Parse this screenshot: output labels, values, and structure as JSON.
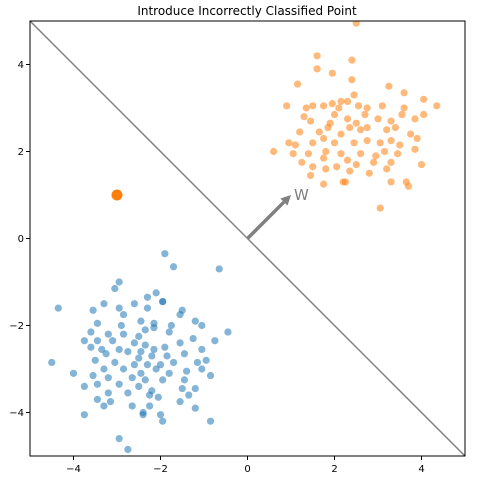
{
  "chart_data": {
    "type": "scatter",
    "title": "Introduce Incorrectly Classified Point",
    "xlim": [
      -5,
      5
    ],
    "ylim": [
      -5,
      5
    ],
    "xticks": [
      -4,
      -2,
      0,
      2,
      4
    ],
    "yticks": [
      -4,
      -2,
      0,
      2,
      4
    ],
    "xtick_labels": [
      "−4",
      "−2",
      "0",
      "2",
      "4"
    ],
    "ytick_labels": [
      "−4",
      "−2",
      "0",
      "2",
      "4"
    ],
    "grid": false,
    "legend": "none",
    "colors": {
      "blue": "#1f77b4",
      "orange": "#ff7f0e",
      "line": "#808080"
    },
    "decision_line": {
      "points": [
        [
          -5,
          5
        ],
        [
          5,
          -5
        ]
      ]
    },
    "weight_vector": {
      "start": [
        0,
        0
      ],
      "end": [
        1,
        1
      ],
      "label": "W"
    },
    "misclassified_point": {
      "x": -3,
      "y": 1
    },
    "series": [
      {
        "color": "#1f77b4",
        "points": [
          [
            -1.9,
            -0.35
          ],
          [
            -1.7,
            -0.65
          ],
          [
            -0.65,
            -0.7
          ],
          [
            -2.95,
            -1.0
          ],
          [
            -3.05,
            -1.15
          ],
          [
            -2.1,
            -1.25
          ],
          [
            -2.3,
            -1.35
          ],
          [
            -4.35,
            -1.6
          ],
          [
            -3.3,
            -1.5
          ],
          [
            -2.6,
            -1.5
          ],
          [
            -1.95,
            -1.45
          ],
          [
            -3.55,
            -1.65
          ],
          [
            -2.95,
            -1.6
          ],
          [
            -2.3,
            -1.6
          ],
          [
            -1.5,
            -1.65
          ],
          [
            -2.85,
            -1.75
          ],
          [
            -1.2,
            -1.9
          ],
          [
            -2.45,
            -1.9
          ],
          [
            -2.15,
            -1.95
          ],
          [
            -3.45,
            -1.95
          ],
          [
            -2.9,
            -2.0
          ],
          [
            -1.75,
            -2.0
          ],
          [
            -1.55,
            -1.75
          ],
          [
            -1.05,
            -2.0
          ],
          [
            -2.15,
            -2.05
          ],
          [
            -3.6,
            -2.15
          ],
          [
            -3.2,
            -2.2
          ],
          [
            -2.85,
            -2.2
          ],
          [
            -2.5,
            -2.25
          ],
          [
            -1.8,
            -2.15
          ],
          [
            -0.45,
            -2.15
          ],
          [
            -3.75,
            -2.35
          ],
          [
            -3.45,
            -2.35
          ],
          [
            -3.1,
            -2.35
          ],
          [
            -2.6,
            -2.4
          ],
          [
            -2.35,
            -2.45
          ],
          [
            -1.55,
            -2.4
          ],
          [
            -0.75,
            -2.35
          ],
          [
            -3.6,
            -2.5
          ],
          [
            -3.35,
            -2.55
          ],
          [
            -2.95,
            -2.55
          ],
          [
            -2.45,
            -2.6
          ],
          [
            -2.15,
            -2.55
          ],
          [
            -1.9,
            -2.5
          ],
          [
            -1.05,
            -2.55
          ],
          [
            -3.25,
            -2.65
          ],
          [
            -2.75,
            -2.6
          ],
          [
            -2.5,
            -2.75
          ],
          [
            -2.2,
            -2.7
          ],
          [
            -1.85,
            -2.7
          ],
          [
            -1.45,
            -2.65
          ],
          [
            -4.5,
            -2.85
          ],
          [
            -3.5,
            -2.8
          ],
          [
            -3.05,
            -2.85
          ],
          [
            -2.6,
            -2.9
          ],
          [
            -2.3,
            -2.9
          ],
          [
            -2.0,
            -2.9
          ],
          [
            -1.7,
            -2.85
          ],
          [
            -1.15,
            -2.85
          ],
          [
            -0.95,
            -2.8
          ],
          [
            -3.3,
            -3.0
          ],
          [
            -2.85,
            -3.0
          ],
          [
            -2.45,
            -3.1
          ],
          [
            -2.1,
            -3.0
          ],
          [
            -1.8,
            -3.1
          ],
          [
            -1.4,
            -3.05
          ],
          [
            -1.05,
            -3.0
          ],
          [
            -4.0,
            -3.1
          ],
          [
            -3.55,
            -3.15
          ],
          [
            -3.2,
            -3.2
          ],
          [
            -2.65,
            -3.2
          ],
          [
            -2.35,
            -3.25
          ],
          [
            -1.95,
            -3.25
          ],
          [
            -1.45,
            -3.25
          ],
          [
            -0.85,
            -3.15
          ],
          [
            -3.75,
            -3.4
          ],
          [
            -3.45,
            -3.35
          ],
          [
            -2.95,
            -3.35
          ],
          [
            -2.5,
            -3.4
          ],
          [
            -2.2,
            -3.5
          ],
          [
            -1.5,
            -3.45
          ],
          [
            -1.2,
            -3.45
          ],
          [
            -3.2,
            -3.55
          ],
          [
            -2.75,
            -3.55
          ],
          [
            -3.45,
            -3.7
          ],
          [
            -2.25,
            -3.6
          ],
          [
            -1.35,
            -3.6
          ],
          [
            -1.55,
            -3.75
          ],
          [
            -2.05,
            -3.65
          ],
          [
            -2.25,
            -3.85
          ],
          [
            -3.3,
            -3.85
          ],
          [
            -2.4,
            -4.0
          ],
          [
            -3.75,
            -4.05
          ],
          [
            -1.2,
            -3.9
          ],
          [
            -2.0,
            -4.05
          ],
          [
            -2.4,
            -4.05
          ],
          [
            -3.15,
            -3.75
          ],
          [
            -0.85,
            -4.2
          ],
          [
            -1.95,
            -4.2
          ],
          [
            -2.95,
            -4.6
          ],
          [
            -2.75,
            -4.85
          ],
          [
            -1.95,
            -1.45
          ],
          [
            -2.35,
            -2.1
          ],
          [
            -2.65,
            -3.85
          ],
          [
            -1.25,
            -2.3
          ]
        ]
      },
      {
        "color": "#ff7f0e",
        "points": [
          [
            2.5,
            4.95
          ],
          [
            1.6,
            4.2
          ],
          [
            2.4,
            4.1
          ],
          [
            1.6,
            3.9
          ],
          [
            1.95,
            3.8
          ],
          [
            2.4,
            3.65
          ],
          [
            1.15,
            3.55
          ],
          [
            3.25,
            3.5
          ],
          [
            2.45,
            3.3
          ],
          [
            3.6,
            3.35
          ],
          [
            4.05,
            3.2
          ],
          [
            4.35,
            3.05
          ],
          [
            0.9,
            3.05
          ],
          [
            1.75,
            3.05
          ],
          [
            1.95,
            3.1
          ],
          [
            2.1,
            3.0
          ],
          [
            2.15,
            3.15
          ],
          [
            2.3,
            3.15
          ],
          [
            2.55,
            3.05
          ],
          [
            2.75,
            3.0
          ],
          [
            3.1,
            3.05
          ],
          [
            3.6,
            3.0
          ],
          [
            4.05,
            2.85
          ],
          [
            1.35,
            3.0
          ],
          [
            1.5,
            3.05
          ],
          [
            1.3,
            2.8
          ],
          [
            1.45,
            2.7
          ],
          [
            2.0,
            2.85
          ],
          [
            2.3,
            2.75
          ],
          [
            2.5,
            2.65
          ],
          [
            2.75,
            2.55
          ],
          [
            3.0,
            2.75
          ],
          [
            3.3,
            2.7
          ],
          [
            3.55,
            2.85
          ],
          [
            3.85,
            2.75
          ],
          [
            1.85,
            2.55
          ],
          [
            2.15,
            2.4
          ],
          [
            2.35,
            2.55
          ],
          [
            2.6,
            2.5
          ],
          [
            3.2,
            2.5
          ],
          [
            3.4,
            2.55
          ],
          [
            3.75,
            2.4
          ],
          [
            1.2,
            2.45
          ],
          [
            1.65,
            2.45
          ],
          [
            0.95,
            2.2
          ],
          [
            1.1,
            2.15
          ],
          [
            1.5,
            2.2
          ],
          [
            1.75,
            2.3
          ],
          [
            2.0,
            2.2
          ],
          [
            2.45,
            2.2
          ],
          [
            2.75,
            2.25
          ],
          [
            3.05,
            2.2
          ],
          [
            3.3,
            2.25
          ],
          [
            3.5,
            2.15
          ],
          [
            3.85,
            2.05
          ],
          [
            0.6,
            2.0
          ],
          [
            1.05,
            1.95
          ],
          [
            1.4,
            1.95
          ],
          [
            1.8,
            2.0
          ],
          [
            2.15,
            1.95
          ],
          [
            2.6,
            1.95
          ],
          [
            2.95,
            1.9
          ],
          [
            3.15,
            2.0
          ],
          [
            3.45,
            1.95
          ],
          [
            1.25,
            1.75
          ],
          [
            1.75,
            1.85
          ],
          [
            2.3,
            1.8
          ],
          [
            2.9,
            1.75
          ],
          [
            3.3,
            1.75
          ],
          [
            4.0,
            1.7
          ],
          [
            1.5,
            1.65
          ],
          [
            1.8,
            1.6
          ],
          [
            2.35,
            1.55
          ],
          [
            2.8,
            1.5
          ],
          [
            3.2,
            1.6
          ],
          [
            1.45,
            1.45
          ],
          [
            2.5,
            1.7
          ],
          [
            1.75,
            1.25
          ],
          [
            2.2,
            1.3
          ],
          [
            2.25,
            1.3
          ],
          [
            3.3,
            1.3
          ],
          [
            3.65,
            1.3
          ],
          [
            3.7,
            1.2
          ],
          [
            3.05,
            0.7
          ],
          [
            1.9,
            2.65
          ],
          [
            2.7,
            2.85
          ],
          [
            3.9,
            2.3
          ],
          [
            2.05,
            1.65
          ]
        ]
      }
    ]
  }
}
